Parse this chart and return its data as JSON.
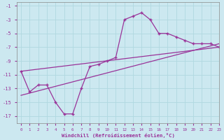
{
  "xlabel": "Windchill (Refroidissement éolien,°C)",
  "bg_color": "#cce8f0",
  "grid_color": "#b0d8e0",
  "line_color": "#993399",
  "xlim": [
    -0.5,
    23
  ],
  "ylim": [
    -18,
    -0.5
  ],
  "yticks": [
    -17,
    -15,
    -13,
    -11,
    -9,
    -7,
    -5,
    -3,
    -1
  ],
  "xticks": [
    0,
    1,
    2,
    3,
    4,
    5,
    6,
    7,
    8,
    9,
    10,
    11,
    12,
    13,
    14,
    15,
    16,
    17,
    18,
    19,
    20,
    21,
    22,
    23
  ],
  "line1_x": [
    0,
    1,
    2,
    3,
    4,
    5,
    6,
    7,
    8,
    9,
    10,
    11,
    12,
    13,
    14,
    15,
    16,
    17,
    18,
    19,
    20,
    21,
    22,
    23
  ],
  "line1_y": [
    -10.5,
    -13.5,
    -12.5,
    -12.5,
    -15.0,
    -16.7,
    -16.7,
    -13.0,
    -9.8,
    -9.5,
    -9.0,
    -8.5,
    -3.0,
    -2.5,
    -2.0,
    -3.0,
    -5.0,
    -5.0,
    -5.5,
    -6.0,
    -6.5,
    -6.5,
    -6.5,
    -7.0
  ],
  "line2_x": [
    0,
    23
  ],
  "line2_y": [
    -14.0,
    -6.5
  ],
  "line3_x": [
    0,
    23
  ],
  "line3_y": [
    -10.5,
    -7.0
  ]
}
